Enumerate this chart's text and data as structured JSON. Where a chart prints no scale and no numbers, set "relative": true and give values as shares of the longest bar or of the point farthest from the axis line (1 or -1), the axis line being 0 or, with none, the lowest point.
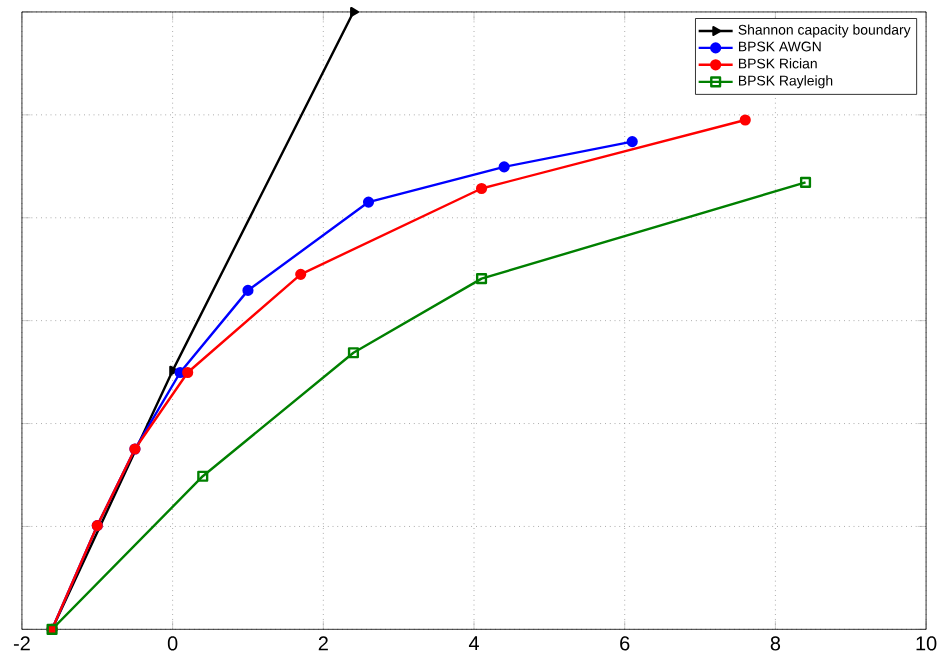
{
  "chart_data": {
    "type": "line",
    "relative": true,
    "grid": true,
    "legend": "top right",
    "tick_labels": "x",
    "line_style": "solid",
    "xlim": [
      -2,
      10
    ],
    "xticks": [
      -2,
      0,
      2,
      4,
      6,
      8,
      10
    ],
    "series": [
      {
        "name": "Shannon capacity boundary",
        "color": "#000000",
        "marker": "triangle",
        "x": [
          -1.6,
          0.0,
          2.4
        ],
        "values": [
          0,
          0.419,
          1
        ]
      },
      {
        "name": "BPSK AWGN",
        "color": "#0000ff",
        "marker": "circle",
        "x": [
          -1.6,
          -1.0,
          -0.5,
          0.1,
          1.0,
          2.6,
          4.4,
          6.1
        ],
        "values": [
          0,
          0.168,
          0.292,
          0.416,
          0.549,
          0.692,
          0.749,
          0.79
        ]
      },
      {
        "name": "BPSK Rician",
        "color": "#ff0000",
        "marker": "circle",
        "x": [
          -1.6,
          -1.0,
          -0.5,
          0.2,
          1.7,
          4.1,
          7.6
        ],
        "values": [
          0,
          0.168,
          0.292,
          0.416,
          0.575,
          0.714,
          0.825
        ]
      },
      {
        "name": "BPSK Rayleigh",
        "color": "#008000",
        "marker": "square",
        "x": [
          -1.6,
          0.4,
          2.4,
          4.1,
          8.4
        ],
        "values": [
          0,
          0.248,
          0.448,
          0.568,
          0.724
        ]
      }
    ]
  }
}
